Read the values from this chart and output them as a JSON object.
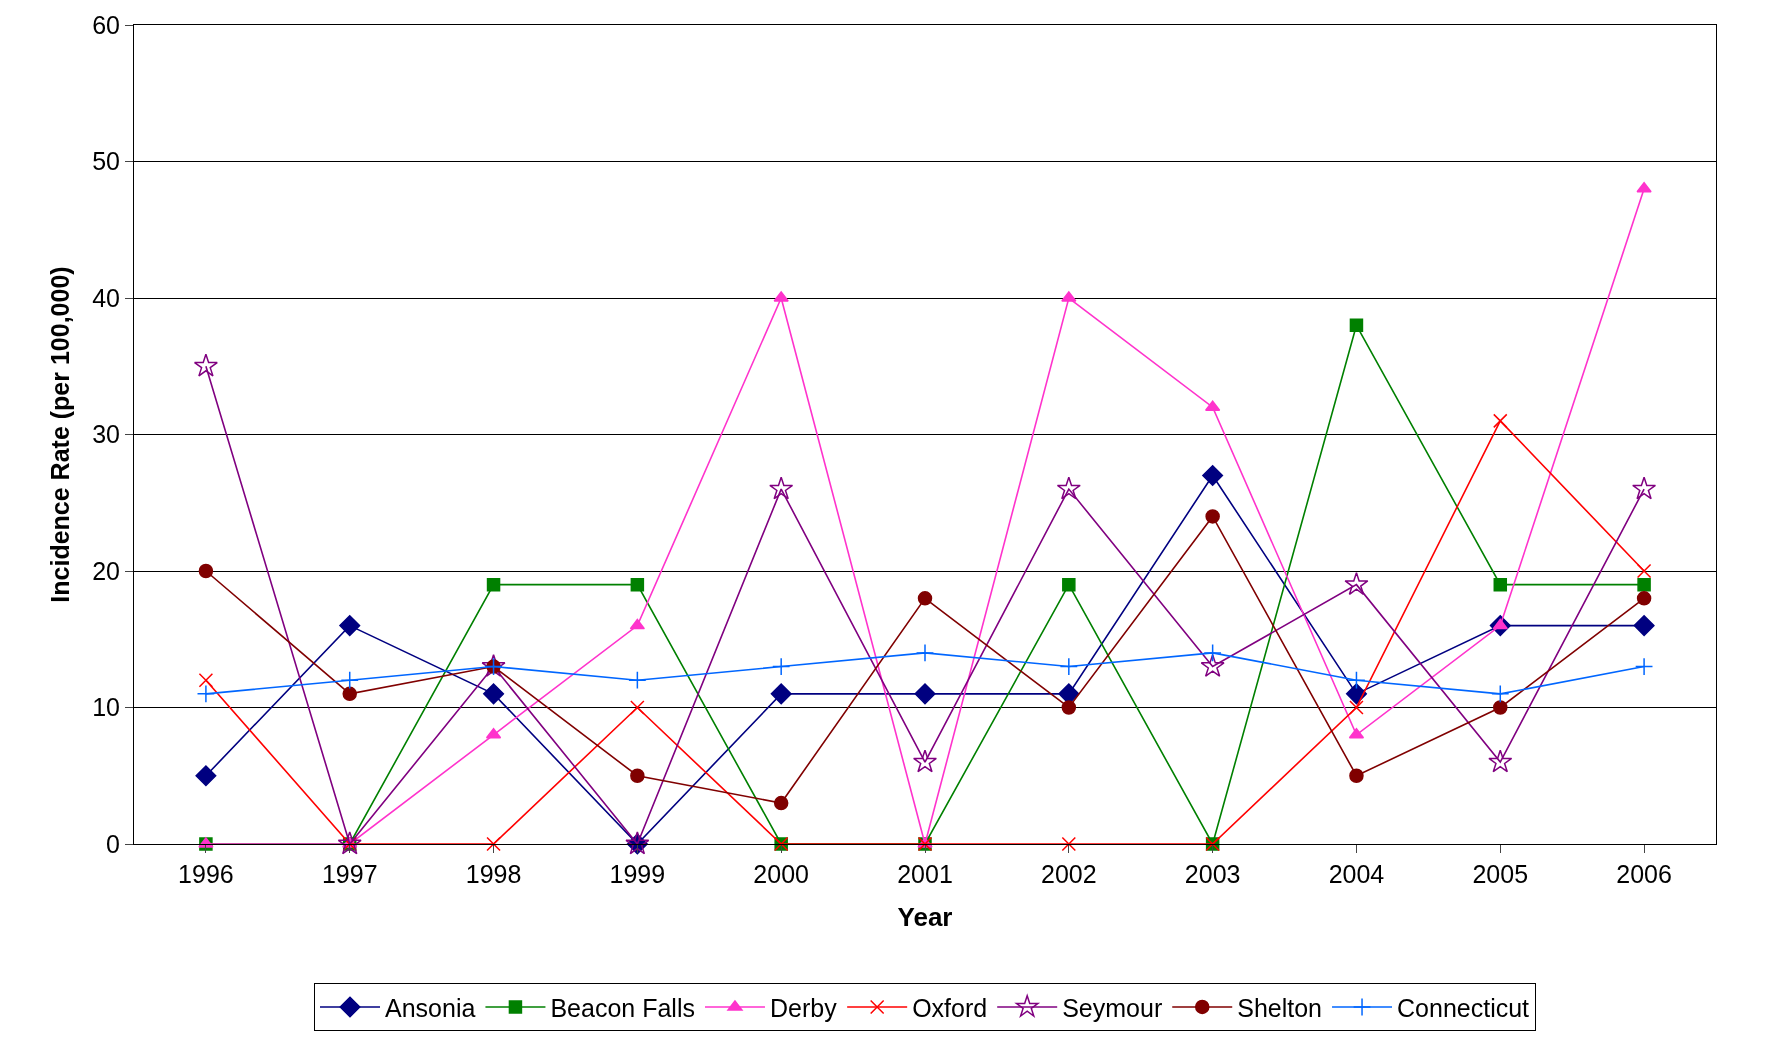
{
  "chart_data": {
    "type": "line",
    "xlabel": "Year",
    "ylabel": "Incidence Rate (per 100,000)",
    "categories": [
      "1996",
      "1997",
      "1998",
      "1999",
      "2000",
      "2001",
      "2002",
      "2003",
      "2004",
      "2005",
      "2006"
    ],
    "ylim": [
      0,
      60
    ],
    "yticks": [
      0,
      10,
      20,
      30,
      40,
      50,
      60
    ],
    "grid": "y",
    "legend": "bottom",
    "series": [
      {
        "name": "Ansonia",
        "color": "#000080",
        "marker": "diamond",
        "values": [
          5,
          16,
          11,
          0,
          11,
          11,
          11,
          27,
          11,
          16,
          16
        ]
      },
      {
        "name": "Beacon Falls",
        "color": "#008000",
        "marker": "square",
        "values": [
          0,
          0,
          19,
          19,
          0,
          0,
          19,
          0,
          38,
          19,
          19
        ]
      },
      {
        "name": "Derby",
        "color": "#ff33cc",
        "marker": "triangle",
        "values": [
          0,
          0,
          8,
          16,
          40,
          0,
          40,
          32,
          8,
          16,
          48
        ]
      },
      {
        "name": "Oxford",
        "color": "#ff0000",
        "marker": "cross",
        "values": [
          12,
          0,
          0,
          10,
          0,
          0,
          0,
          0,
          10,
          31,
          20
        ]
      },
      {
        "name": "Seymour",
        "color": "#800080",
        "marker": "star",
        "values": [
          35,
          0,
          13,
          0,
          26,
          6,
          26,
          13,
          19,
          6,
          26
        ]
      },
      {
        "name": "Shelton",
        "color": "#800000",
        "marker": "circle",
        "values": [
          20,
          11,
          13,
          5,
          3,
          18,
          10,
          24,
          5,
          10,
          18
        ]
      },
      {
        "name": "Connecticut",
        "color": "#0066ff",
        "marker": "plus",
        "values": [
          11,
          12,
          13,
          12,
          13,
          14,
          13,
          14,
          12,
          11,
          13
        ]
      }
    ]
  }
}
